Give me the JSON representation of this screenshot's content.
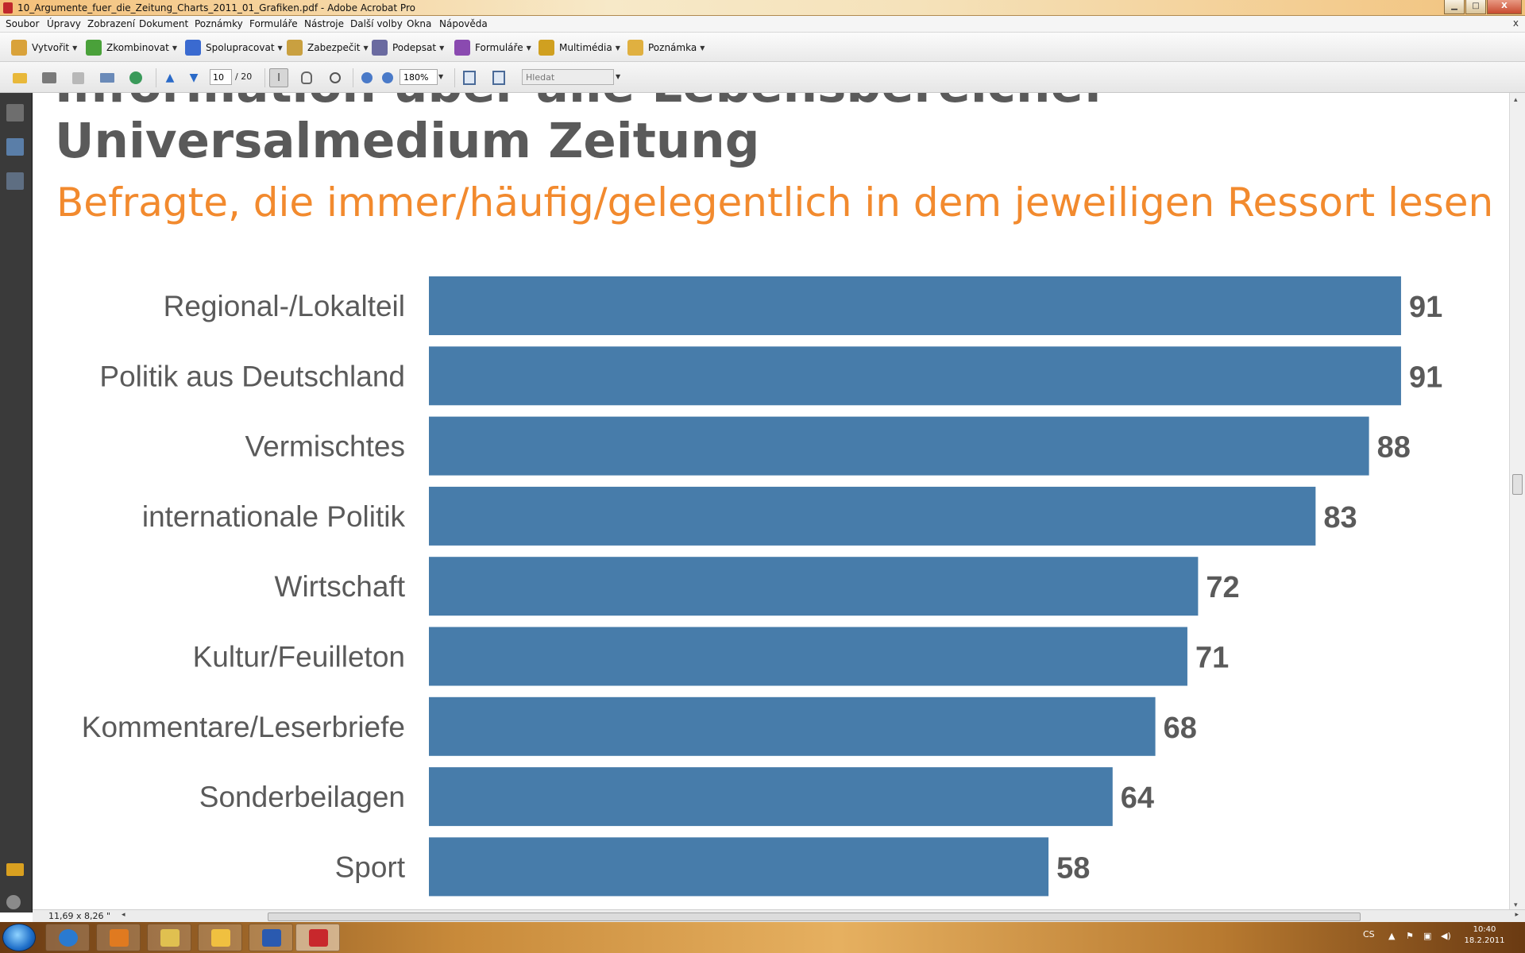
{
  "window": {
    "title": "10_Argumente_fuer_die_Zeitung_Charts_2011_01_Grafiken.pdf - Adobe Acrobat Pro",
    "minimize_glyph": "▁",
    "maximize_glyph": "□",
    "close_glyph": "X"
  },
  "menu": {
    "items": [
      "Soubor",
      "Úpravy",
      "Zobrazení",
      "Dokument",
      "Poznámky",
      "Formuláře",
      "Nástroje",
      "Další volby",
      "Okna",
      "Nápověda"
    ],
    "close_glyph": "x"
  },
  "toolbar1": {
    "items": [
      {
        "label": "Vytvořit",
        "icon": "create-icon",
        "color": "#d9a23a"
      },
      {
        "label": "Zkombinovat",
        "icon": "combine-icon",
        "color": "#4aa13a"
      },
      {
        "label": "Spolupracovat",
        "icon": "collaborate-icon",
        "color": "#3a6ad0"
      },
      {
        "label": "Zabezpečit",
        "icon": "lock-icon",
        "color": "#c9a040"
      },
      {
        "label": "Podepsat",
        "icon": "pen-icon",
        "color": "#6a6aa0"
      },
      {
        "label": "Formuláře",
        "icon": "forms-icon",
        "color": "#8a4ab0"
      },
      {
        "label": "Multimédia",
        "icon": "multimedia-icon",
        "color": "#d0a020"
      },
      {
        "label": "Poznámka",
        "icon": "comment-icon",
        "color": "#e0b040"
      }
    ]
  },
  "toolbar2": {
    "page_current": "10",
    "page_total": "/ 20",
    "zoom": "180%",
    "search_placeholder": "Hledat"
  },
  "slide": {
    "title": "Information über alle Lebensbereiche: Universalmedium Zeitung",
    "subtitle": "Befragte, die immer/häufig/gelegentlich in dem jeweiligen Ressort lesen"
  },
  "chart_data": {
    "type": "bar",
    "orientation": "horizontal",
    "categories": [
      "Regional-/Lokalteil",
      "Politik aus Deutschland",
      "Vermischtes",
      "internationale Politik",
      "Wirtschaft",
      "Kultur/Feuilleton",
      "Kommentare/Leserbriefe",
      "Sonderbeilagen",
      "Sport"
    ],
    "values": [
      91,
      91,
      88,
      83,
      72,
      71,
      68,
      64,
      58
    ],
    "data_labels": true,
    "bar_color": "#477caa",
    "label_color": "#5a5a5a",
    "value_color": "#5a5a5a",
    "grid": false,
    "legend": "none"
  },
  "status": {
    "page_size": "11,69 x 8,26 \"",
    "left_arrow": "◂",
    "right_arrow": "▸",
    "scroll_up": "▴",
    "scroll_down": "▾"
  },
  "taskbar": {
    "apps": [
      {
        "name": "Internet Explorer",
        "icon": "ie-icon",
        "color": "#2a7ad0"
      },
      {
        "name": "Media Player",
        "icon": "media-player-icon",
        "color": "#e07a20"
      },
      {
        "name": "Explorer",
        "icon": "folder-icon",
        "color": "#e0c050"
      },
      {
        "name": "Outlook",
        "icon": "outlook-icon",
        "color": "#f0c040"
      },
      {
        "name": "Word",
        "icon": "word-icon",
        "color": "#2a5ab0"
      },
      {
        "name": "Acrobat",
        "icon": "acrobat-icon",
        "color": "#c8282c"
      }
    ],
    "language": "CS",
    "time": "10:40",
    "date": "18.2.2011"
  }
}
